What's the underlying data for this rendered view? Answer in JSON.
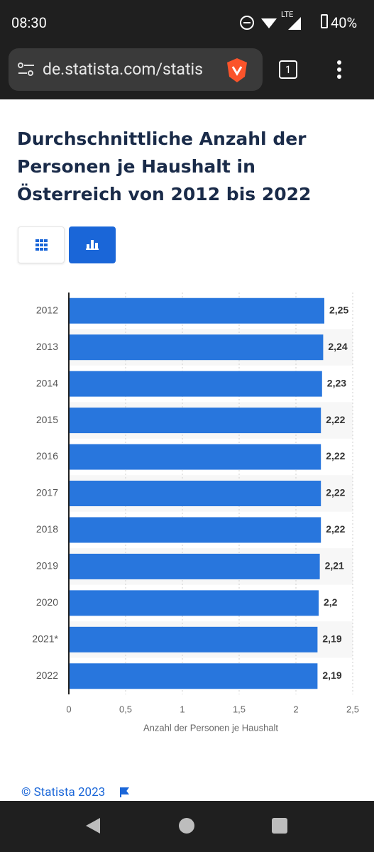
{
  "status_bar": {
    "time": "08:30",
    "network": "LTE",
    "battery": "40%"
  },
  "browser": {
    "url": "de.statista.com/statis",
    "tab_count": "1"
  },
  "chart_data": {
    "type": "bar",
    "orientation": "horizontal",
    "title": "Durchschnittliche Anzahl der Personen je Haushalt in Österreich von 2012 bis 2022",
    "categories": [
      "2012",
      "2013",
      "2014",
      "2015",
      "2016",
      "2017",
      "2018",
      "2019",
      "2020",
      "2021*",
      "2022"
    ],
    "values": [
      2.25,
      2.24,
      2.23,
      2.22,
      2.22,
      2.22,
      2.22,
      2.21,
      2.2,
      2.19,
      2.19
    ],
    "value_labels": [
      "2,25",
      "2,24",
      "2,23",
      "2,22",
      "2,22",
      "2,22",
      "2,22",
      "2,21",
      "2,2",
      "2,19",
      "2,19"
    ],
    "color": "#2876dd",
    "xlim": [
      0,
      2.5
    ],
    "xticks": [
      0,
      {
        "value": 0.5,
        "label": "0,5"
      },
      1,
      {
        "value": 1.5,
        "label": "1,5"
      },
      2,
      {
        "value": 2.5,
        "label": "2,5"
      }
    ],
    "xlabel": "Anzahl der Personen je Haushalt",
    "grid": true
  },
  "footer": {
    "copyright": "© Statista 2023"
  }
}
